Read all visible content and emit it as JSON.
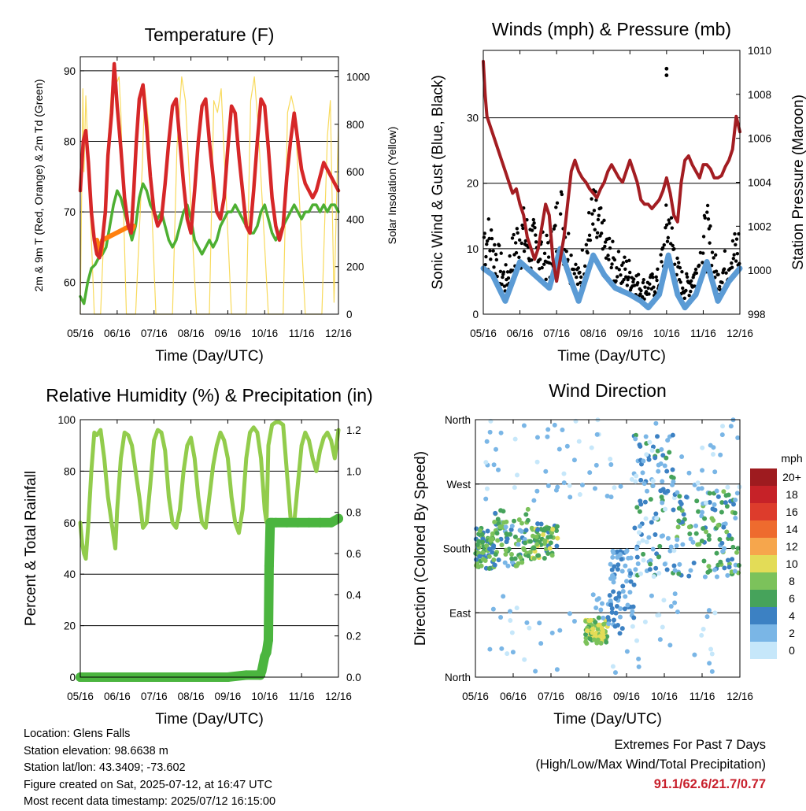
{
  "colors": {
    "temp": "#d62728",
    "temp9": "#ff7f0e",
    "dew": "#4daf32",
    "solar": "#f7d64a",
    "gust": "#000000",
    "wind": "#5b9bd5",
    "pressure": "#a31d22",
    "rh": "#92cc4c",
    "precip": "#4bb53f",
    "extremes": "#c8202c"
  },
  "date_ticks": [
    "05/16",
    "06/16",
    "07/16",
    "08/16",
    "09/16",
    "10/16",
    "11/16",
    "12/16"
  ],
  "chart_data": [
    {
      "id": "temperature",
      "type": "line",
      "title": "Temperature (F)",
      "xlabel": "Time (Day/UTC)",
      "ylabel": "2m & 9m T (Red, Orange) & 2m Td (Green)",
      "y2label": "Solar Insolation (Yellow)",
      "xlim": [
        0,
        7
      ],
      "ylim": [
        55.5,
        92
      ],
      "y2lim": [
        0,
        1085
      ],
      "yticks": [
        60,
        70,
        80,
        90
      ],
      "y2ticks": [
        0,
        200,
        400,
        600,
        800,
        1000
      ],
      "grid": true,
      "series": [
        {
          "key": "t2",
          "x": [
            0,
            0.08,
            0.15,
            0.22,
            0.3,
            0.38,
            0.45,
            0.52,
            0.6,
            0.68,
            0.75,
            0.85,
            0.92,
            1.0,
            1.1,
            1.2,
            1.3,
            1.38,
            1.45,
            1.52,
            1.6,
            1.7,
            1.8,
            1.9,
            2.0,
            2.1,
            2.2,
            2.3,
            2.4,
            2.5,
            2.6,
            2.7,
            2.8,
            2.9,
            3.0,
            3.1,
            3.2,
            3.3,
            3.4,
            3.5,
            3.6,
            3.7,
            3.8,
            3.9,
            4.0,
            4.1,
            4.2,
            4.3,
            4.4,
            4.5,
            4.6,
            4.7,
            4.8,
            4.9,
            5.0,
            5.1,
            5.2,
            5.3,
            5.4,
            5.5,
            5.6,
            5.7,
            5.8,
            5.9,
            6.0,
            6.1,
            6.2,
            6.3,
            6.4,
            6.5,
            6.6,
            6.7,
            6.8,
            6.9,
            7.0
          ],
          "y": [
            73,
            80,
            81.5,
            77,
            70,
            66,
            64,
            63.5,
            66,
            70,
            78,
            84,
            91,
            85,
            79,
            72,
            68,
            67,
            73,
            80,
            86,
            88,
            82,
            75,
            70,
            68,
            69,
            74,
            80,
            85,
            86,
            80,
            74,
            69,
            67,
            73,
            80,
            85,
            86,
            80,
            75,
            70,
            69,
            72,
            79,
            85,
            84,
            78,
            73,
            68,
            67,
            73,
            80,
            86,
            85,
            79,
            72,
            68,
            66,
            68,
            75,
            80,
            84,
            80,
            76,
            74,
            73,
            72,
            73,
            75,
            77,
            76,
            75,
            74,
            73
          ]
        },
        {
          "key": "t9",
          "x": [
            0.45,
            0.5,
            0.55,
            0.6,
            1.35,
            1.4,
            1.45
          ],
          "y": [
            66,
            65,
            64,
            66,
            68,
            67.5,
            68
          ]
        },
        {
          "key": "td",
          "x": [
            0,
            0.1,
            0.2,
            0.3,
            0.4,
            0.5,
            0.6,
            0.7,
            0.8,
            0.9,
            1.0,
            1.1,
            1.2,
            1.3,
            1.4,
            1.5,
            1.6,
            1.7,
            1.8,
            1.9,
            2.0,
            2.1,
            2.2,
            2.3,
            2.4,
            2.5,
            2.6,
            2.7,
            2.8,
            2.9,
            3.0,
            3.1,
            3.2,
            3.3,
            3.4,
            3.5,
            3.6,
            3.7,
            3.8,
            3.9,
            4.0,
            4.1,
            4.2,
            4.3,
            4.4,
            4.5,
            4.6,
            4.7,
            4.8,
            4.9,
            5.0,
            5.1,
            5.2,
            5.3,
            5.4,
            5.5,
            5.6,
            5.7,
            5.8,
            5.9,
            6.0,
            6.1,
            6.2,
            6.3,
            6.4,
            6.5,
            6.6,
            6.7,
            6.8,
            6.9,
            7.0
          ],
          "y": [
            58,
            57,
            60,
            62,
            62.5,
            63.5,
            64,
            65,
            68,
            71,
            73,
            72,
            70,
            68,
            66,
            68,
            72,
            74,
            73,
            71,
            70,
            69,
            70,
            68,
            66,
            65,
            66,
            68,
            70,
            71,
            69,
            66,
            65,
            64,
            65,
            66,
            65,
            66,
            68,
            69,
            70,
            70,
            71,
            70,
            69,
            68,
            67,
            67,
            68,
            70,
            71,
            69,
            67,
            66,
            67,
            68,
            69,
            70,
            71,
            70,
            69,
            70,
            70,
            71,
            71,
            70,
            71,
            70,
            71,
            71,
            70
          ]
        },
        {
          "key": "solar",
          "x": [
            0,
            0.07,
            0.1,
            0.15,
            0.38,
            0.45,
            0.55,
            0.72,
            0.87,
            1.0,
            1.05,
            1.1,
            1.25,
            1.4,
            1.5,
            1.68,
            1.75,
            1.85,
            2.05,
            2.2,
            2.35,
            2.5,
            2.62,
            2.75,
            2.85,
            3.15,
            3.25,
            3.38,
            3.5,
            3.62,
            3.72,
            3.82,
            4.1,
            4.22,
            4.35,
            4.5,
            4.62,
            4.72,
            4.82,
            5.1,
            5.2,
            5.35,
            5.5,
            5.62,
            5.72,
            5.82,
            6.1,
            6.25,
            6.4,
            6.55,
            6.7,
            6.78,
            6.88,
            7.0
          ],
          "y": [
            0,
            950,
            600,
            920,
            0,
            0,
            0,
            650,
            1000,
            980,
            1000,
            850,
            0,
            0,
            0,
            620,
            950,
            800,
            0,
            0,
            0,
            0,
            700,
            1000,
            900,
            0,
            0,
            0,
            0,
            900,
            850,
            950,
            0,
            0,
            0,
            0,
            900,
            1000,
            800,
            0,
            0,
            0,
            0,
            850,
            920,
            850,
            0,
            0,
            0,
            0,
            750,
            900,
            50,
            800
          ]
        }
      ]
    },
    {
      "id": "winds",
      "type": "line",
      "title": "Winds (mph) & Pressure (mb)",
      "xlabel": "Time (Day/UTC)",
      "ylabel": "Sonic Wind & Gust (Blue, Black)",
      "y2label": "Station Pressure (Maroon)",
      "xlim": [
        0,
        7
      ],
      "ylim": [
        0,
        40.3
      ],
      "y2lim": [
        998,
        1010
      ],
      "yticks": [
        0,
        10,
        20,
        30
      ],
      "y2ticks": [
        998,
        1000,
        1002,
        1004,
        1006,
        1008,
        1010
      ],
      "grid": true,
      "series": [
        {
          "key": "pressure",
          "x": [
            0,
            0.05,
            0.1,
            0.2,
            0.3,
            0.4,
            0.5,
            0.6,
            0.7,
            0.8,
            0.9,
            1.0,
            1.1,
            1.2,
            1.3,
            1.4,
            1.5,
            1.6,
            1.7,
            1.8,
            1.9,
            2.0,
            2.1,
            2.2,
            2.3,
            2.4,
            2.5,
            2.6,
            2.7,
            2.8,
            2.9,
            3.0,
            3.1,
            3.2,
            3.3,
            3.4,
            3.5,
            3.6,
            3.7,
            3.8,
            3.9,
            4.0,
            4.1,
            4.2,
            4.3,
            4.4,
            4.5,
            4.6,
            4.7,
            4.8,
            4.9,
            5.0,
            5.1,
            5.2,
            5.3,
            5.4,
            5.5,
            5.6,
            5.7,
            5.8,
            5.9,
            6.0,
            6.1,
            6.2,
            6.3,
            6.4,
            6.5,
            6.6,
            6.7,
            6.8,
            6.9,
            7.0
          ],
          "y": [
            1009.5,
            1008,
            1007,
            1006.5,
            1006,
            1005.5,
            1005,
            1004.5,
            1004,
            1003.5,
            1003.7,
            1003,
            1002.5,
            1001.5,
            1001,
            1000.5,
            1001,
            1002,
            1003,
            1002.5,
            1000.5,
            999.5,
            1000.5,
            1001.5,
            1003,
            1004.5,
            1005,
            1004.5,
            1004.2,
            1004,
            1003.7,
            1003.5,
            1003.3,
            1003.7,
            1004,
            1004.5,
            1004.8,
            1004.5,
            1004.2,
            1004,
            1004.5,
            1005,
            1004.5,
            1004,
            1003.2,
            1003,
            1003,
            1002.8,
            1003,
            1003.2,
            1003.6,
            1004.2,
            1003.5,
            1002.5,
            1002.2,
            1004,
            1005,
            1005.2,
            1004.8,
            1004.5,
            1004.2,
            1004.8,
            1004.8,
            1004.6,
            1004.2,
            1004.2,
            1004.3,
            1004.7,
            1005,
            1005.5,
            1007,
            1006.3
          ]
        },
        {
          "key": "gust",
          "x": [
            0,
            0.25,
            0.6,
            1.0,
            1.4,
            1.8,
            2.1,
            2.4,
            2.6,
            3.0,
            3.3,
            3.6,
            4.0,
            4.3,
            4.5,
            4.8,
            5.05,
            5.3,
            5.5,
            5.8,
            6.1,
            6.4,
            6.7,
            7.0
          ],
          "y": [
            12,
            10,
            5,
            12,
            10,
            8,
            15,
            8,
            5,
            14,
            10,
            7,
            6,
            4,
            4,
            5,
            14,
            6,
            4,
            6,
            12,
            5,
            8,
            10
          ]
        },
        {
          "key": "wind",
          "x": [
            0,
            0.25,
            0.6,
            1.0,
            1.4,
            1.8,
            2.1,
            2.4,
            2.6,
            3.0,
            3.3,
            3.6,
            4.0,
            4.3,
            4.5,
            4.8,
            5.05,
            5.3,
            5.5,
            5.8,
            6.1,
            6.4,
            6.7,
            7.0
          ],
          "y": [
            7,
            6,
            2,
            8,
            6,
            4,
            10,
            5,
            2,
            9,
            6,
            4,
            3,
            2,
            1,
            3,
            9,
            3,
            1,
            3,
            8,
            2,
            5,
            7
          ]
        }
      ],
      "outliers": {
        "x": [
          5.0,
          5.0
        ],
        "y": [
          36.5,
          37.5
        ]
      }
    },
    {
      "id": "humidity",
      "type": "line",
      "title": "Relative Humidity (%) & Precipitation (in)",
      "xlabel": "Time (Day/UTC)",
      "ylabel": "Percent & Total Rainfall",
      "xlim": [
        0,
        7
      ],
      "ylim": [
        0,
        100
      ],
      "y2lim": [
        0,
        1.25
      ],
      "yticks": [
        0,
        20,
        40,
        60,
        80,
        100
      ],
      "y2ticks": [
        0.0,
        0.2,
        0.4,
        0.6,
        0.8,
        1.0,
        1.2
      ],
      "grid": true,
      "series": [
        {
          "key": "rh",
          "x": [
            0,
            0.05,
            0.1,
            0.15,
            0.22,
            0.3,
            0.38,
            0.45,
            0.55,
            0.65,
            0.75,
            0.85,
            0.9,
            0.95,
            1.0,
            1.1,
            1.2,
            1.3,
            1.4,
            1.5,
            1.6,
            1.7,
            1.8,
            1.9,
            2.0,
            2.1,
            2.2,
            2.3,
            2.4,
            2.5,
            2.6,
            2.7,
            2.8,
            2.9,
            3.0,
            3.1,
            3.2,
            3.3,
            3.4,
            3.5,
            3.6,
            3.7,
            3.8,
            3.9,
            4.0,
            4.1,
            4.2,
            4.3,
            4.4,
            4.5,
            4.6,
            4.7,
            4.8,
            4.9,
            5.0,
            5.05,
            5.1,
            5.2,
            5.3,
            5.4,
            5.5,
            5.6,
            5.7,
            5.8,
            5.9,
            6.0,
            6.1,
            6.2,
            6.3,
            6.4,
            6.5,
            6.6,
            6.7,
            6.8,
            6.9,
            7.0
          ],
          "y": [
            60,
            52,
            48,
            46,
            60,
            80,
            95,
            94,
            96,
            85,
            70,
            60,
            55,
            50,
            65,
            85,
            95,
            94,
            90,
            80,
            70,
            58,
            60,
            75,
            92,
            96,
            95,
            88,
            70,
            60,
            58,
            65,
            80,
            90,
            93,
            85,
            70,
            60,
            58,
            70,
            82,
            90,
            95,
            92,
            85,
            70,
            60,
            56,
            65,
            85,
            95,
            97,
            95,
            85,
            65,
            60,
            90,
            98,
            99,
            99,
            98,
            80,
            62,
            60,
            75,
            90,
            95,
            92,
            85,
            80,
            88,
            93,
            95,
            92,
            85,
            96
          ]
        },
        {
          "key": "precip",
          "x": [
            0,
            0.5,
            1.0,
            1.5,
            2.0,
            2.5,
            3.0,
            3.5,
            4.0,
            4.5,
            4.88,
            4.92,
            5.0,
            5.05,
            5.1,
            5.12,
            5.15,
            5.2,
            5.3,
            5.6,
            5.9,
            6.2,
            6.5,
            6.8,
            7.0
          ],
          "y": [
            0,
            0,
            0,
            0,
            0,
            0,
            0,
            0,
            0,
            0.01,
            0.01,
            0.03,
            0.1,
            0.12,
            0.18,
            0.54,
            0.75,
            0.75,
            0.75,
            0.75,
            0.75,
            0.75,
            0.75,
            0.75,
            0.77
          ]
        }
      ]
    },
    {
      "id": "direction",
      "type": "scatter",
      "title": "Wind Direction",
      "xlabel": "Time (Day/UTC)",
      "ylabel": "Direction (Colored By Speed)",
      "xlim": [
        0,
        7
      ],
      "ylim": [
        0,
        360
      ],
      "yticklabels": [
        "North",
        "East",
        "South",
        "West",
        "North"
      ],
      "grid": true,
      "colorbar": {
        "unit": "mph",
        "labels": [
          "20+",
          "18",
          "16",
          "14",
          "12",
          "10",
          "8",
          "6",
          "4",
          "2",
          "0"
        ],
        "colors": [
          "#9e1b1f",
          "#c62228",
          "#dd3c2c",
          "#ee6b2e",
          "#f6a64c",
          "#e3dc57",
          "#7cc25b",
          "#46a35b",
          "#3c81c3",
          "#7ab6e6",
          "#c6e7fa"
        ]
      }
    }
  ],
  "station_info": {
    "location": "Location: Glens Falls",
    "elevation": "Station elevation: 98.6638 m",
    "latlon": "Station lat/lon: 43.3409; -73.602",
    "created": "Figure created on Sat, 2025-07-12, at 16:47 UTC",
    "recent": "Most recent data timestamp: 2025/07/12 16:15:00"
  },
  "extremes": {
    "line1": "Extremes For Past 7 Days",
    "line2": "(High/Low/Max Wind/Total Precipitation)",
    "values": "91.1/62.6/21.7/0.77"
  }
}
